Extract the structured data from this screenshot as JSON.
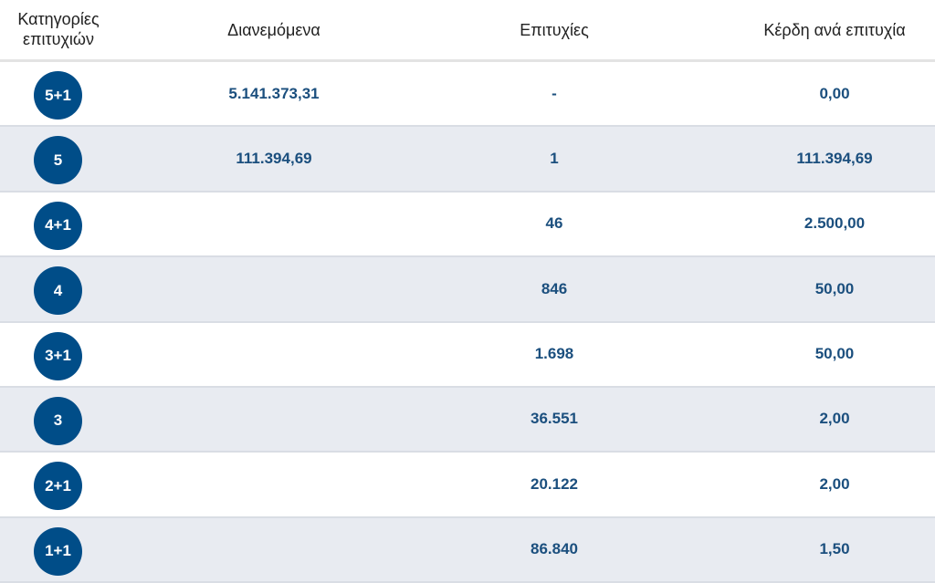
{
  "header": {
    "category": "Κατηγορίες επιτυχιών",
    "distributed": "Διανεμόμενα",
    "winners": "Επιτυχίες",
    "prize_per_winner": "Κέρδη ανά επιτυχία"
  },
  "rows": [
    {
      "category": "5+1",
      "distributed": "5.141.373,31",
      "winners": "-",
      "prize": "0,00"
    },
    {
      "category": "5",
      "distributed": "111.394,69",
      "winners": "1",
      "prize": "111.394,69"
    },
    {
      "category": "4+1",
      "distributed": "",
      "winners": "46",
      "prize": "2.500,00"
    },
    {
      "category": "4",
      "distributed": "",
      "winners": "846",
      "prize": "50,00"
    },
    {
      "category": "3+1",
      "distributed": "",
      "winners": "1.698",
      "prize": "50,00"
    },
    {
      "category": "3",
      "distributed": "",
      "winners": "36.551",
      "prize": "2,00"
    },
    {
      "category": "2+1",
      "distributed": "",
      "winners": "20.122",
      "prize": "2,00"
    },
    {
      "category": "1+1",
      "distributed": "",
      "winners": "86.840",
      "prize": "1,50"
    }
  ],
  "colors": {
    "badge": "#004d88",
    "value_text": "#1b4f7e",
    "alt_row": "#e8ebf1"
  }
}
